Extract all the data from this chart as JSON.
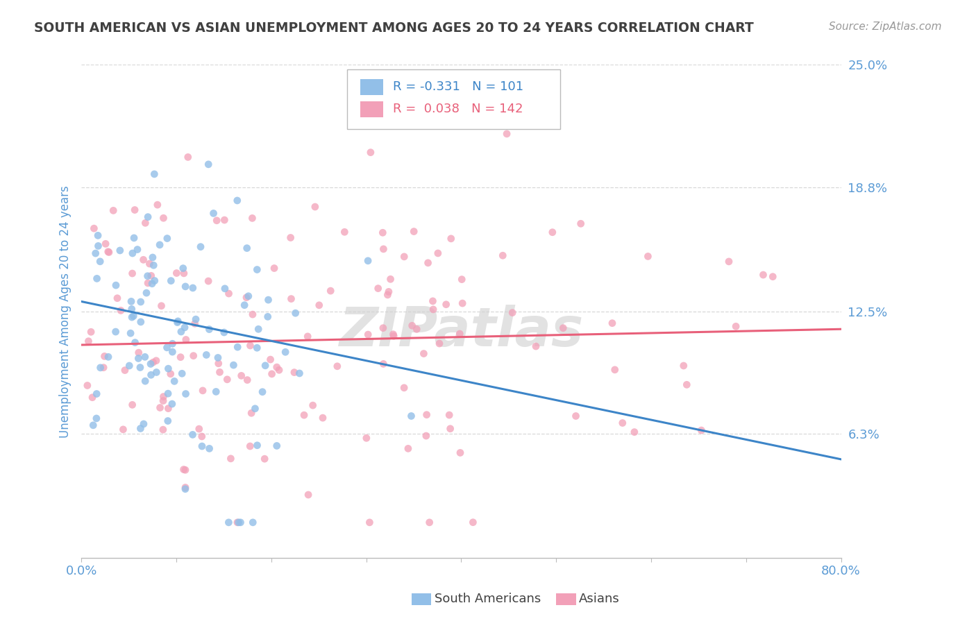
{
  "title": "SOUTH AMERICAN VS ASIAN UNEMPLOYMENT AMONG AGES 20 TO 24 YEARS CORRELATION CHART",
  "source": "Source: ZipAtlas.com",
  "ylabel": "Unemployment Among Ages 20 to 24 years",
  "xlim": [
    0.0,
    0.8
  ],
  "ylim": [
    0.0,
    0.25
  ],
  "ytick_labels": [
    "6.3%",
    "12.5%",
    "18.8%",
    "25.0%"
  ],
  "ytick_values": [
    0.063,
    0.125,
    0.188,
    0.25
  ],
  "xtick_positions": [
    0.0,
    0.1,
    0.2,
    0.3,
    0.4,
    0.5,
    0.6,
    0.7,
    0.8
  ],
  "dot_color_sa": "#92bfe8",
  "dot_color_asian": "#f2a0b8",
  "line_color_sa": "#3d85c8",
  "line_color_asian": "#e8607a",
  "sa_trend_y0": 0.13,
  "sa_trend_y1": 0.05,
  "asian_trend_y0": 0.108,
  "asian_trend_y1": 0.116,
  "background_color": "#ffffff",
  "grid_color": "#d8d8d8",
  "watermark_text": "ZIPatlas",
  "watermark_color": "#d0d0d0",
  "title_color": "#404040",
  "axis_label_color": "#5b9bd5",
  "tick_label_color": "#5b9bd5",
  "legend_sa_text": "R = -0.331   N = 101",
  "legend_asian_text": "R =  0.038   N = 142",
  "bottom_legend_sa": "South Americans",
  "bottom_legend_asian": "Asians",
  "figsize": [
    14.06,
    8.92
  ],
  "dpi": 100
}
